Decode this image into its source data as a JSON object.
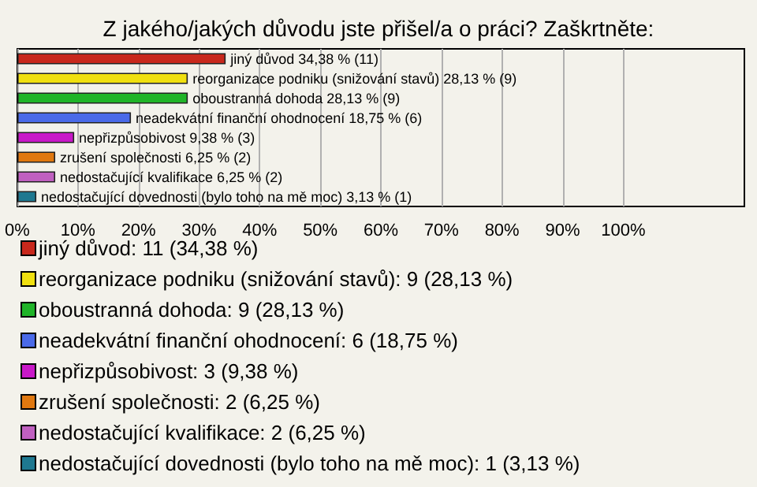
{
  "chart_data": {
    "type": "bar",
    "orientation": "horizontal",
    "stacked": true,
    "title": "Z jakého/jakých důvodu jste přišel/a o práci? Zaškrtněte:",
    "categories": [
      null,
      null,
      null,
      null,
      null,
      null,
      null,
      null
    ],
    "series": [
      {
        "name": "jiný důvod: 11 (34,38 %)",
        "color": "#c8281c",
        "values": [
          34.38,
          null,
          null,
          null,
          null,
          null,
          null,
          null
        ],
        "value_labels": [
          "jiný důvod 34,38 % (11)",
          null,
          null,
          null,
          null,
          null,
          null,
          null
        ]
      },
      {
        "name": "reorganizace podniku (snižování stavů): 9 (28,13 %)",
        "color": "#f0e010",
        "values": [
          null,
          28.13,
          null,
          null,
          null,
          null,
          null,
          null
        ],
        "value_labels": [
          null,
          "reorganizace podniku (snižování stavů) 28,13 % (9)",
          null,
          null,
          null,
          null,
          null,
          null
        ]
      },
      {
        "name": "oboustranná dohoda: 9 (28,13 %)",
        "color": "#20b428",
        "values": [
          null,
          null,
          28.13,
          null,
          null,
          null,
          null,
          null
        ],
        "value_labels": [
          null,
          null,
          "oboustranná dohoda 28,13 % (9)",
          null,
          null,
          null,
          null,
          null
        ]
      },
      {
        "name": "neadekvátní finanční ohodnocení: 6 (18,75 %)",
        "color": "#4a6ae8",
        "values": [
          null,
          null,
          null,
          18.75,
          null,
          null,
          null,
          null
        ],
        "value_labels": [
          null,
          null,
          null,
          "neadekvátní finanční ohodnocení 18,75 % (6)",
          null,
          null,
          null,
          null
        ]
      },
      {
        "name": "nepřizpůsobivost: 3 (9,38 %)",
        "color": "#c818c8",
        "values": [
          null,
          null,
          null,
          null,
          9.38,
          null,
          null,
          null
        ],
        "value_labels": [
          null,
          null,
          null,
          null,
          "nepřizpůsobivost 9,38 % (3)",
          null,
          null,
          null
        ]
      },
      {
        "name": "zrušení společnosti: 2 (6,25 %)",
        "color": "#e07810",
        "values": [
          null,
          null,
          null,
          null,
          null,
          6.25,
          null,
          null
        ],
        "value_labels": [
          null,
          null,
          null,
          null,
          null,
          "zrušení společnosti 6,25 % (2)",
          null,
          null
        ]
      },
      {
        "name": "nedostačující kvalifikace: 2 (6,25 %)",
        "color": "#c060c0",
        "values": [
          null,
          null,
          null,
          null,
          null,
          null,
          6.25,
          null
        ],
        "value_labels": [
          null,
          null,
          null,
          null,
          null,
          null,
          "nedostačující kvalifikace 6,25 % (2)",
          null
        ]
      },
      {
        "name": "nedostačující dovednosti (bylo toho na mě moc): 1 (3,13 %)",
        "color": "#1e7890",
        "values": [
          null,
          null,
          null,
          null,
          null,
          null,
          null,
          3.13
        ],
        "value_labels": [
          null,
          null,
          null,
          null,
          null,
          null,
          null,
          "nedostačující dovednosti (bylo toho na mě moc) 3,13 % (1)"
        ]
      }
    ],
    "xlim": [
      0,
      120
    ],
    "xticks": [
      {
        "value": 0,
        "label": "0%"
      },
      {
        "value": 10,
        "label": "10%"
      },
      {
        "value": 20,
        "label": "20%"
      },
      {
        "value": 30,
        "label": "30%"
      },
      {
        "value": 40,
        "label": "40%"
      },
      {
        "value": 50,
        "label": "50%"
      },
      {
        "value": 60,
        "label": "60%"
      },
      {
        "value": 70,
        "label": "70%"
      },
      {
        "value": 80,
        "label": "80%"
      },
      {
        "value": 90,
        "label": "90%"
      },
      {
        "value": 100,
        "label": "100%"
      }
    ],
    "grid": "x",
    "legend": "bottom"
  }
}
